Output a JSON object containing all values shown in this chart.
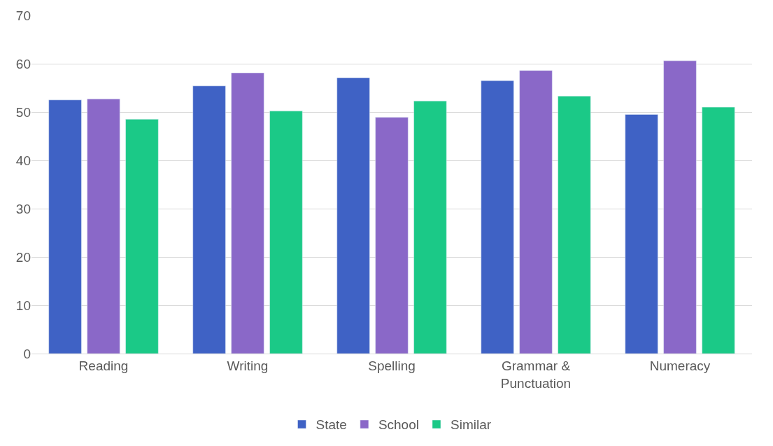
{
  "chart_data": {
    "type": "bar",
    "categories": [
      "Reading",
      "Writing",
      "Spelling",
      "Grammar & Punctuation",
      "Numeracy"
    ],
    "series": [
      {
        "name": "State",
        "color": "#3f62c5",
        "values": [
          52.5,
          55.4,
          57.1,
          56.5,
          49.5
        ]
      },
      {
        "name": "School",
        "color": "#8a68c8",
        "values": [
          52.7,
          58.1,
          48.9,
          58.6,
          60.6
        ]
      },
      {
        "name": "Similar",
        "color": "#1bc987",
        "values": [
          48.5,
          50.2,
          52.3,
          53.3,
          51.0
        ]
      }
    ],
    "ylim": [
      0,
      70
    ],
    "yticks": [
      0,
      10,
      20,
      30,
      40,
      50,
      60,
      70
    ],
    "grid": "y",
    "legend": "bottom"
  }
}
